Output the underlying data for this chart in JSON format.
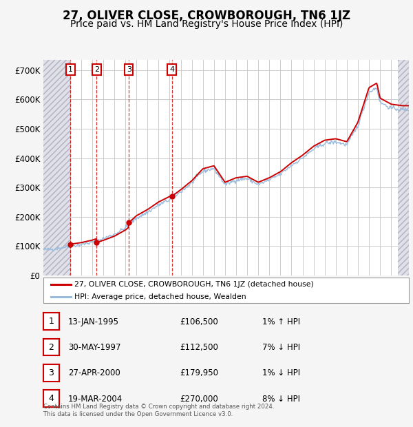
{
  "title": "27, OLIVER CLOSE, CROWBOROUGH, TN6 1JZ",
  "subtitle": "Price paid vs. HM Land Registry's House Price Index (HPI)",
  "property_label": "27, OLIVER CLOSE, CROWBOROUGH, TN6 1JZ (detached house)",
  "hpi_label": "HPI: Average price, detached house, Wealden",
  "footer_line1": "Contains HM Land Registry data © Crown copyright and database right 2024.",
  "footer_line2": "This data is licensed under the Open Government Licence v3.0.",
  "sales": [
    {
      "num": 1,
      "date": "13-JAN-1995",
      "price": 106500,
      "year": 1995.04,
      "pct": "1%",
      "dir": "↑"
    },
    {
      "num": 2,
      "date": "30-MAY-1997",
      "price": 112500,
      "year": 1997.41,
      "pct": "7%",
      "dir": "↓"
    },
    {
      "num": 3,
      "date": "27-APR-2000",
      "price": 179950,
      "year": 2000.32,
      "pct": "1%",
      "dir": "↓"
    },
    {
      "num": 4,
      "date": "19-MAR-2004",
      "price": 270000,
      "year": 2004.21,
      "pct": "8%",
      "dir": "↓"
    }
  ],
  "ylim": [
    0,
    735000
  ],
  "yticks": [
    0,
    100000,
    200000,
    300000,
    400000,
    500000,
    600000,
    700000
  ],
  "ytick_labels": [
    "£0",
    "£100K",
    "£200K",
    "£300K",
    "£400K",
    "£500K",
    "£600K",
    "£700K"
  ],
  "xlim_start": 1992.6,
  "xlim_end": 2025.6,
  "hatch_end_year": 1995.04,
  "hatch_start_year": 2024.6,
  "property_color": "#cc0000",
  "hpi_color": "#99bbdd",
  "background_color": "#f5f5f5",
  "plot_bg_color": "#ffffff",
  "grid_color": "#cccccc",
  "sale_vline_color": "#cc0000",
  "title_fontsize": 12,
  "subtitle_fontsize": 10,
  "hpi_anchors_x": [
    1993,
    1994,
    1995,
    1996,
    1997,
    1998,
    1999,
    2000,
    2001,
    2002,
    2003,
    2004,
    2005,
    2006,
    2007,
    2008,
    2009,
    2010,
    2011,
    2012,
    2013,
    2014,
    2015,
    2016,
    2017,
    2018,
    2019,
    2020,
    2021,
    2022,
    2022.7,
    2023,
    2024,
    2025
  ],
  "hpi_anchors_y": [
    88000,
    93000,
    100000,
    105000,
    113000,
    125000,
    140000,
    162000,
    195000,
    215000,
    240000,
    258000,
    285000,
    315000,
    355000,
    365000,
    310000,
    325000,
    330000,
    310000,
    325000,
    345000,
    375000,
    400000,
    430000,
    450000,
    455000,
    445000,
    510000,
    625000,
    640000,
    590000,
    570000,
    565000
  ]
}
